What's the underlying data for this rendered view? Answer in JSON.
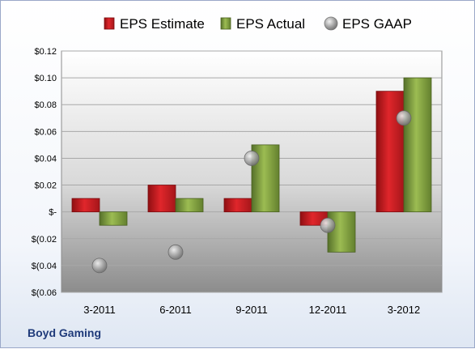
{
  "company": "Boyd Gaming",
  "chart_data": {
    "type": "bar",
    "title": "",
    "xlabel": "",
    "ylabel": "",
    "categories": [
      "3-2011",
      "6-2011",
      "9-2011",
      "12-2011",
      "3-2012"
    ],
    "series": [
      {
        "name": "EPS Estimate",
        "kind": "bar",
        "color": "#c81d21",
        "values": [
          0.01,
          0.02,
          0.01,
          -0.01,
          0.09
        ]
      },
      {
        "name": "EPS Actual",
        "kind": "bar",
        "color": "#7d9b3a",
        "values": [
          -0.01,
          0.01,
          0.05,
          -0.03,
          0.1
        ]
      },
      {
        "name": "EPS GAAP",
        "kind": "point",
        "color": "#a6a6a6",
        "values": [
          -0.04,
          -0.03,
          0.04,
          -0.01,
          0.07
        ]
      }
    ],
    "ylim": [
      -0.06,
      0.12
    ],
    "yticks": [
      0.12,
      0.1,
      0.08,
      0.06,
      0.04,
      0.02,
      0,
      -0.02,
      -0.04,
      -0.06
    ],
    "ytick_labels": [
      "$0.12",
      "$0.10",
      "$0.08",
      "$0.06",
      "$0.04",
      "$0.02",
      "$-",
      "$(0.02",
      "$(0.04",
      "$(0.06"
    ],
    "grid": true,
    "legend_position": "top"
  }
}
